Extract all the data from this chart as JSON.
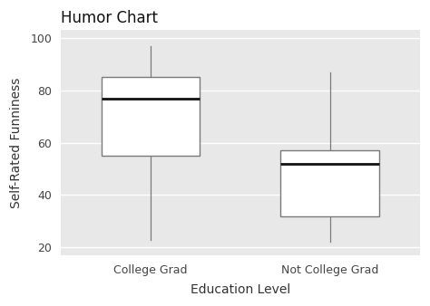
{
  "title": "Humor Chart",
  "xlabel": "Education Level",
  "ylabel": "Self-Rated Funniness",
  "categories": [
    "College Grad",
    "Not College Grad"
  ],
  "ylim": [
    17,
    103
  ],
  "yticks": [
    20,
    40,
    60,
    80,
    100
  ],
  "fig_facecolor": "#FFFFFF",
  "axes_facecolor": "#E8E8E8",
  "box_facecolor": "#FFFFFF",
  "box_edgecolor": "#7a7a7a",
  "median_color": "#111111",
  "whisker_color": "#7a7a7a",
  "grid_color": "#FFFFFF",
  "box1": {
    "q1": 55,
    "median": 77,
    "q3": 85,
    "whisker_low": 23,
    "whisker_high": 97
  },
  "box2": {
    "q1": 32,
    "median": 52,
    "q3": 57,
    "whisker_low": 22,
    "whisker_high": 87
  },
  "title_fontsize": 12,
  "axis_label_fontsize": 10,
  "tick_fontsize": 9,
  "box_width": 0.55
}
